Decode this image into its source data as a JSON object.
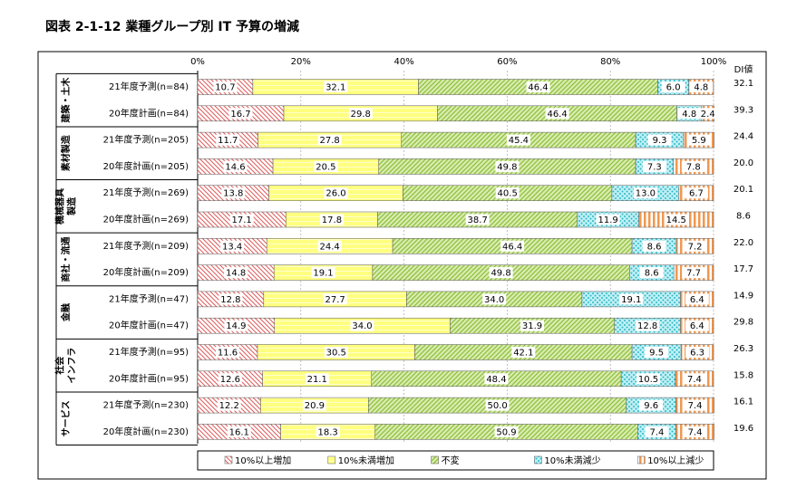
{
  "chart_data": {
    "type": "stacked-bar-horizontal",
    "title": "図表 2-1-12 業種グループ別 IT 予算の増減",
    "groups": [
      {
        "label": [
          "建築・土木"
        ]
      },
      {
        "label": [
          "素材製造"
        ]
      },
      {
        "label": [
          "機械器具",
          "製造"
        ]
      },
      {
        "label": [
          "商社・流通"
        ]
      },
      {
        "label": [
          "金融"
        ]
      },
      {
        "label": [
          "社会",
          "インフラ"
        ]
      },
      {
        "label": [
          "サービス"
        ]
      }
    ],
    "categories": [
      "21年度予測(n=84)",
      "20年度計画(n=84)",
      "21年度予測(n=205)",
      "20年度計画(n=205)",
      "21年度予測(n=269)",
      "20年度計画(n=269)",
      "21年度予測(n=209)",
      "20年度計画(n=209)",
      "21年度予測(n=47)",
      "20年度計画(n=47)",
      "21年度予測(n=95)",
      "20年度計画(n=95)",
      "21年度予測(n=230)",
      "20年度計画(n=230)"
    ],
    "series": [
      {
        "name": "10%以上増加",
        "color": "#e05a5a",
        "values": [
          10.7,
          16.7,
          11.7,
          14.6,
          13.8,
          17.1,
          13.4,
          14.8,
          12.8,
          14.9,
          11.6,
          12.6,
          12.2,
          16.1
        ],
        "value_labels": [
          "10.7",
          "16.7",
          "11.7",
          "14.6",
          "13.8",
          "17.1",
          "13.4",
          "14.8",
          "12.8",
          "14.9",
          "11.6",
          "12.6",
          "12.2",
          "16.1"
        ]
      },
      {
        "name": "10%未満増加",
        "color": "#ffff80",
        "values": [
          32.1,
          29.8,
          27.8,
          20.5,
          26.0,
          17.8,
          24.4,
          19.1,
          27.7,
          34.0,
          30.5,
          21.1,
          20.9,
          18.3
        ],
        "value_labels": [
          "32.1",
          "29.8",
          "27.8",
          "20.5",
          "26.0",
          "17.8",
          "24.4",
          "19.1",
          "27.7",
          "34.0",
          "30.5",
          "21.1",
          "20.9",
          "18.3"
        ]
      },
      {
        "name": "不変",
        "color": "#8dbf3a",
        "values": [
          46.4,
          46.4,
          45.4,
          49.8,
          40.5,
          38.7,
          46.4,
          49.8,
          34.0,
          31.9,
          42.1,
          48.4,
          50.0,
          50.9
        ],
        "value_labels": [
          "46.4",
          "46.4",
          "45.4",
          "49.8",
          "40.5",
          "38.7",
          "46.4",
          "49.8",
          "34.0",
          "31.9",
          "42.1",
          "48.4",
          "50.0",
          "50.9"
        ]
      },
      {
        "name": "10%未満減少",
        "color": "#2cb8c8",
        "values": [
          6.0,
          4.8,
          9.3,
          7.3,
          13.0,
          11.9,
          8.6,
          8.6,
          19.1,
          12.8,
          9.5,
          10.5,
          9.6,
          7.4
        ],
        "value_labels": [
          "6.0",
          "4.8",
          "9.3",
          "7.3",
          "13.0",
          "11.9",
          "8.6",
          "8.6",
          "19.1",
          "12.8",
          "9.5",
          "10.5",
          "9.6",
          "7.4"
        ]
      },
      {
        "name": "10%以上減少",
        "color": "#f09850",
        "values": [
          4.8,
          2.4,
          5.9,
          7.8,
          6.7,
          14.5,
          7.2,
          7.7,
          6.4,
          6.4,
          6.3,
          7.4,
          7.4,
          7.4
        ],
        "value_labels": [
          "4.8",
          "2.4",
          "5.9",
          "7.8",
          "6.7",
          "14.5",
          "7.2",
          "7.7",
          "6.4",
          "6.4",
          "6.3",
          "7.4",
          "7.4",
          "7.4"
        ]
      }
    ],
    "di": {
      "label": "DI値",
      "values": [
        32.1,
        39.3,
        24.4,
        20.0,
        20.1,
        8.6,
        22.0,
        17.7,
        14.9,
        29.8,
        26.3,
        15.8,
        16.1,
        19.6
      ],
      "value_labels": [
        "32.1",
        "39.3",
        "24.4",
        "20.0",
        "20.1",
        "8.6",
        "22.0",
        "17.7",
        "14.9",
        "29.8",
        "26.3",
        "15.8",
        "16.1",
        "19.6"
      ]
    },
    "xlim": [
      0,
      100
    ],
    "xticks": [
      {
        "value": 0,
        "label": "0%"
      },
      {
        "value": 20,
        "label": "20%"
      },
      {
        "value": 40,
        "label": "40%"
      },
      {
        "value": 60,
        "label": "60%"
      },
      {
        "value": 80,
        "label": "80%"
      },
      {
        "value": 100,
        "label": "100%"
      }
    ],
    "grid": true
  }
}
